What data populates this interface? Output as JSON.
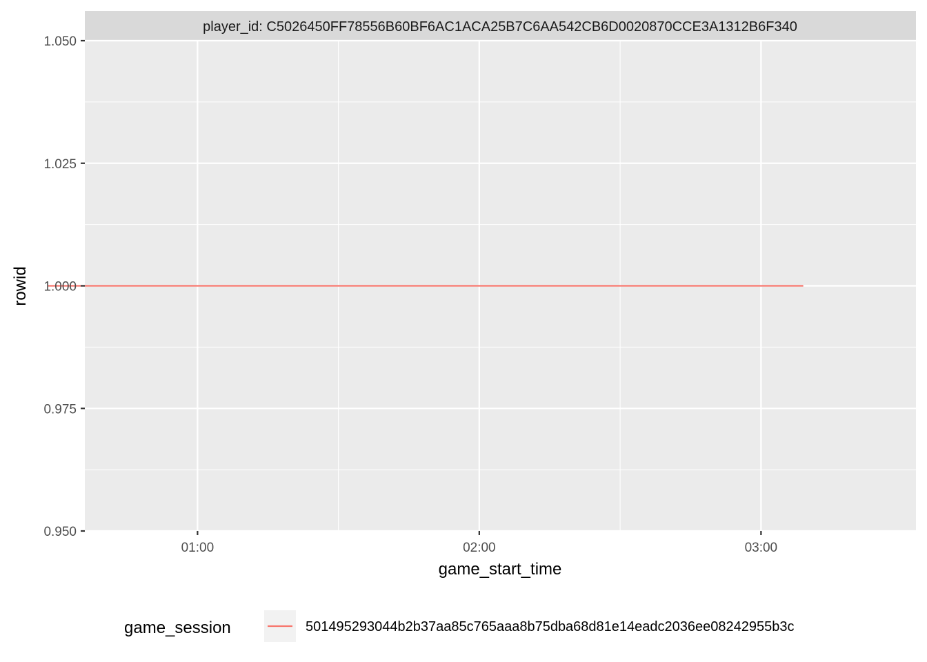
{
  "chart_data": {
    "type": "line",
    "facet_label": "player_id: C5026450FF78556B60BF6AC1ACA25B7C6AA542CB6D0020870CCE3A1312B6F340",
    "xlabel": "game_start_time",
    "ylabel": "rowid",
    "x_ticks": [
      "01:00",
      "02:00",
      "03:00"
    ],
    "x_tick_minutes": [
      60,
      120,
      180
    ],
    "y_ticks": [
      "0.950",
      "0.975",
      "1.000",
      "1.025",
      "1.050"
    ],
    "y_tick_values": [
      0.95,
      0.975,
      1.0,
      1.025,
      1.05
    ],
    "xlim_minutes": [
      36,
      213
    ],
    "ylim": [
      0.95,
      1.05
    ],
    "grid": true,
    "legend_position": "bottom",
    "legend_title": "game_session",
    "series": [
      {
        "name": "501495293044b2b37aa85c765aaa8b75dba68d81e14eadc2036ee08242955b3c",
        "color": "#F8766D",
        "x_minutes": [
          28,
          189
        ],
        "values": [
          1.0,
          1.0
        ]
      }
    ]
  }
}
